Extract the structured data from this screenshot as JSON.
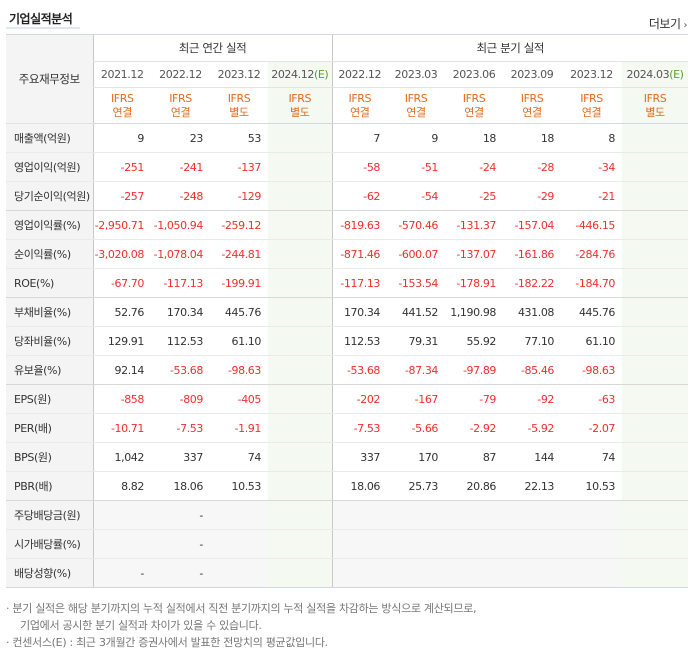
{
  "header": {
    "title": "기업실적분석",
    "more_label": "더보기"
  },
  "table": {
    "row_header": "주요재무정보",
    "group_annual": "최근 연간 실적",
    "group_quarter": "최근 분기 실적",
    "periods": [
      "2021.12",
      "2022.12",
      "2023.12",
      "2024.12",
      "2022.12",
      "2023.03",
      "2023.06",
      "2023.09",
      "2023.12",
      "2024.03"
    ],
    "estimate_mark": "(E)",
    "types": [
      [
        "IFRS",
        "연결"
      ],
      [
        "IFRS",
        "연결"
      ],
      [
        "IFRS",
        "별도"
      ],
      [
        "IFRS",
        "별도"
      ],
      [
        "IFRS",
        "연결"
      ],
      [
        "IFRS",
        "연결"
      ],
      [
        "IFRS",
        "연결"
      ],
      [
        "IFRS",
        "연결"
      ],
      [
        "IFRS",
        "연결"
      ],
      [
        "IFRS",
        "별도"
      ]
    ],
    "rows": [
      {
        "label": "매출액(억원)",
        "values": [
          "9",
          "23",
          "53",
          "",
          "7",
          "9",
          "18",
          "18",
          "8",
          ""
        ]
      },
      {
        "label": "영업이익(억원)",
        "values": [
          "-251",
          "-241",
          "-137",
          "",
          "-58",
          "-51",
          "-24",
          "-28",
          "-34",
          ""
        ]
      },
      {
        "label": "당기순이익(억원)",
        "values": [
          "-257",
          "-248",
          "-129",
          "",
          "-62",
          "-54",
          "-25",
          "-29",
          "-21",
          ""
        ]
      },
      {
        "label": "영업이익률(%)",
        "values": [
          "-2,950.71",
          "-1,050.94",
          "-259.12",
          "",
          "-819.63",
          "-570.46",
          "-131.37",
          "-157.04",
          "-446.15",
          ""
        ]
      },
      {
        "label": "순이익률(%)",
        "values": [
          "-3,020.08",
          "-1,078.04",
          "-244.81",
          "",
          "-871.46",
          "-600.07",
          "-137.07",
          "-161.86",
          "-284.76",
          ""
        ]
      },
      {
        "label": "ROE(%)",
        "values": [
          "-67.70",
          "-117.13",
          "-199.91",
          "",
          "-117.13",
          "-153.54",
          "-178.91",
          "-182.22",
          "-184.70",
          ""
        ]
      },
      {
        "label": "부채비율(%)",
        "values": [
          "52.76",
          "170.34",
          "445.76",
          "",
          "170.34",
          "441.52",
          "1,190.98",
          "431.08",
          "445.76",
          ""
        ]
      },
      {
        "label": "당좌비율(%)",
        "values": [
          "129.91",
          "112.53",
          "61.10",
          "",
          "112.53",
          "79.31",
          "55.92",
          "77.10",
          "61.10",
          ""
        ]
      },
      {
        "label": "유보율(%)",
        "values": [
          "92.14",
          "-53.68",
          "-98.63",
          "",
          "-53.68",
          "-87.34",
          "-97.89",
          "-85.46",
          "-98.63",
          ""
        ]
      },
      {
        "label": "EPS(원)",
        "values": [
          "-858",
          "-809",
          "-405",
          "",
          "-202",
          "-167",
          "-79",
          "-92",
          "-63",
          ""
        ]
      },
      {
        "label": "PER(배)",
        "values": [
          "-10.71",
          "-7.53",
          "-1.91",
          "",
          "-7.53",
          "-5.66",
          "-2.92",
          "-5.92",
          "-2.07",
          ""
        ]
      },
      {
        "label": "BPS(원)",
        "values": [
          "1,042",
          "337",
          "74",
          "",
          "337",
          "170",
          "87",
          "144",
          "74",
          ""
        ]
      },
      {
        "label": "PBR(배)",
        "values": [
          "8.82",
          "18.06",
          "10.53",
          "",
          "18.06",
          "25.73",
          "20.86",
          "22.13",
          "10.53",
          ""
        ]
      },
      {
        "label": "주당배당금(원)",
        "values": [
          "",
          "-",
          "",
          "",
          "",
          "",
          "",
          "",
          "",
          ""
        ]
      },
      {
        "label": "시가배당률(%)",
        "values": [
          "",
          "-",
          "",
          "",
          "",
          "",
          "",
          "",
          "",
          ""
        ]
      },
      {
        "label": "배당성향(%)",
        "values": [
          "-",
          "-",
          "",
          "",
          "",
          "",
          "",
          "",
          "",
          ""
        ]
      }
    ]
  },
  "notes": {
    "line1": "· 분기 실적은 해당 분기까지의 누적 실적에서 직전 분기까지의 누적 실적을 차감하는 방식으로 계산되므로,",
    "line2": "기업에서 공시한 분기 실적과 차이가 있을 수 있습니다.",
    "line3": "· 컨센서스(E) : 최근 3개월간 증권사에서 발표한 전망치의 평균값입니다."
  },
  "colors": {
    "negative": "#ef2e2e",
    "ifrs": "#e06b1f",
    "estimate_bg": "#f4faf1",
    "estimate_mark": "#5aa02c"
  }
}
